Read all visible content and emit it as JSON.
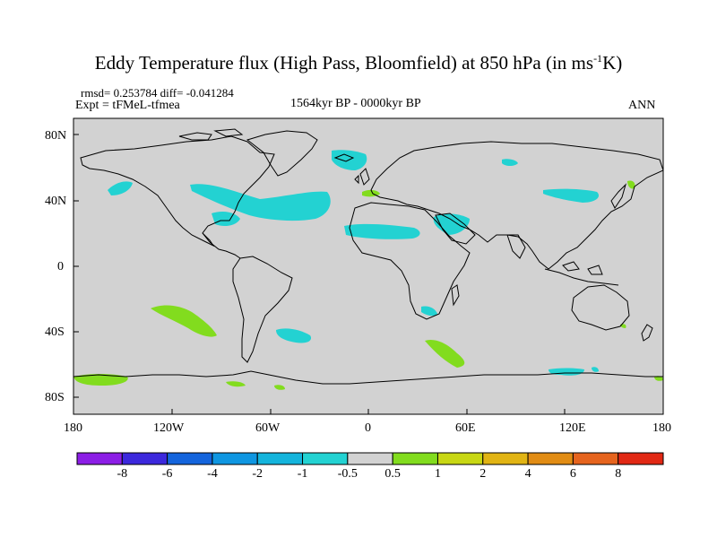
{
  "title": {
    "prefix": "Eddy Temperature flux (High Pass, Bloomfield) at 850 hPa (in ms",
    "superscript": "-1",
    "suffix": "K)"
  },
  "stats": "rmsd= 0.253784 diff= -0.041284",
  "experiment": "Expt = tFMeL-tfmea",
  "period": "1564kyr BP - 0000kyr BP",
  "season": "ANN",
  "lat_labels": [
    "80N",
    "40N",
    "0",
    "40S",
    "80S"
  ],
  "lon_labels": [
    "180",
    "120W",
    "60W",
    "0",
    "60E",
    "120E",
    "180"
  ],
  "colorbar": {
    "labels": [
      "-8",
      "-6",
      "-4",
      "-2",
      "-1",
      "-0.5",
      "0.5",
      "1",
      "2",
      "4",
      "6",
      "8"
    ],
    "colors": [
      "#8c1ee6",
      "#3c28dc",
      "#1464dc",
      "#0f96e1",
      "#14b4dc",
      "#23d2d2",
      "#d2d2d2",
      "#82dc1e",
      "#c8d714",
      "#e1b414",
      "#e18c14",
      "#e6641e",
      "#e12814"
    ]
  },
  "colors": {
    "land_ocean": "#d2d2d2",
    "neg_cyan": "#23d2d2",
    "pos_green": "#82dc1e",
    "coast": "#000000"
  }
}
